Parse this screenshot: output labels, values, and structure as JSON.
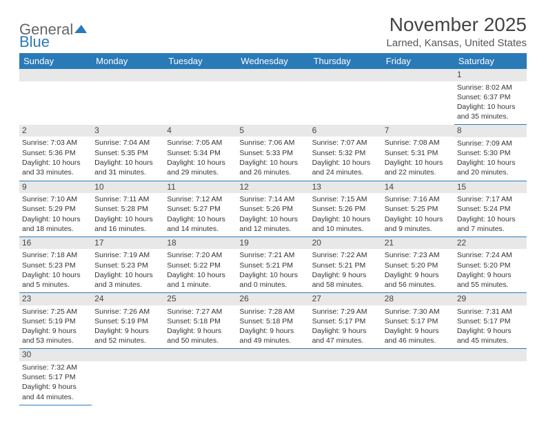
{
  "logo": {
    "general": "General",
    "blue": "Blue"
  },
  "title": "November 2025",
  "location": "Larned, Kansas, United States",
  "colors": {
    "header_bg": "#2a7ab8",
    "header_text": "#ffffff",
    "daynum_bg": "#e8e8e8",
    "border": "#2a7ab8",
    "text": "#333333"
  },
  "weekdays": [
    "Sunday",
    "Monday",
    "Tuesday",
    "Wednesday",
    "Thursday",
    "Friday",
    "Saturday"
  ],
  "weeks": [
    [
      null,
      null,
      null,
      null,
      null,
      null,
      {
        "n": "1",
        "sr": "8:02 AM",
        "ss": "6:37 PM",
        "dl": "10 hours and 35 minutes."
      }
    ],
    [
      {
        "n": "2",
        "sr": "7:03 AM",
        "ss": "5:36 PM",
        "dl": "10 hours and 33 minutes."
      },
      {
        "n": "3",
        "sr": "7:04 AM",
        "ss": "5:35 PM",
        "dl": "10 hours and 31 minutes."
      },
      {
        "n": "4",
        "sr": "7:05 AM",
        "ss": "5:34 PM",
        "dl": "10 hours and 29 minutes."
      },
      {
        "n": "5",
        "sr": "7:06 AM",
        "ss": "5:33 PM",
        "dl": "10 hours and 26 minutes."
      },
      {
        "n": "6",
        "sr": "7:07 AM",
        "ss": "5:32 PM",
        "dl": "10 hours and 24 minutes."
      },
      {
        "n": "7",
        "sr": "7:08 AM",
        "ss": "5:31 PM",
        "dl": "10 hours and 22 minutes."
      },
      {
        "n": "8",
        "sr": "7:09 AM",
        "ss": "5:30 PM",
        "dl": "10 hours and 20 minutes."
      }
    ],
    [
      {
        "n": "9",
        "sr": "7:10 AM",
        "ss": "5:29 PM",
        "dl": "10 hours and 18 minutes."
      },
      {
        "n": "10",
        "sr": "7:11 AM",
        "ss": "5:28 PM",
        "dl": "10 hours and 16 minutes."
      },
      {
        "n": "11",
        "sr": "7:12 AM",
        "ss": "5:27 PM",
        "dl": "10 hours and 14 minutes."
      },
      {
        "n": "12",
        "sr": "7:14 AM",
        "ss": "5:26 PM",
        "dl": "10 hours and 12 minutes."
      },
      {
        "n": "13",
        "sr": "7:15 AM",
        "ss": "5:26 PM",
        "dl": "10 hours and 10 minutes."
      },
      {
        "n": "14",
        "sr": "7:16 AM",
        "ss": "5:25 PM",
        "dl": "10 hours and 9 minutes."
      },
      {
        "n": "15",
        "sr": "7:17 AM",
        "ss": "5:24 PM",
        "dl": "10 hours and 7 minutes."
      }
    ],
    [
      {
        "n": "16",
        "sr": "7:18 AM",
        "ss": "5:23 PM",
        "dl": "10 hours and 5 minutes."
      },
      {
        "n": "17",
        "sr": "7:19 AM",
        "ss": "5:23 PM",
        "dl": "10 hours and 3 minutes."
      },
      {
        "n": "18",
        "sr": "7:20 AM",
        "ss": "5:22 PM",
        "dl": "10 hours and 1 minute."
      },
      {
        "n": "19",
        "sr": "7:21 AM",
        "ss": "5:21 PM",
        "dl": "10 hours and 0 minutes."
      },
      {
        "n": "20",
        "sr": "7:22 AM",
        "ss": "5:21 PM",
        "dl": "9 hours and 58 minutes."
      },
      {
        "n": "21",
        "sr": "7:23 AM",
        "ss": "5:20 PM",
        "dl": "9 hours and 56 minutes."
      },
      {
        "n": "22",
        "sr": "7:24 AM",
        "ss": "5:20 PM",
        "dl": "9 hours and 55 minutes."
      }
    ],
    [
      {
        "n": "23",
        "sr": "7:25 AM",
        "ss": "5:19 PM",
        "dl": "9 hours and 53 minutes."
      },
      {
        "n": "24",
        "sr": "7:26 AM",
        "ss": "5:19 PM",
        "dl": "9 hours and 52 minutes."
      },
      {
        "n": "25",
        "sr": "7:27 AM",
        "ss": "5:18 PM",
        "dl": "9 hours and 50 minutes."
      },
      {
        "n": "26",
        "sr": "7:28 AM",
        "ss": "5:18 PM",
        "dl": "9 hours and 49 minutes."
      },
      {
        "n": "27",
        "sr": "7:29 AM",
        "ss": "5:17 PM",
        "dl": "9 hours and 47 minutes."
      },
      {
        "n": "28",
        "sr": "7:30 AM",
        "ss": "5:17 PM",
        "dl": "9 hours and 46 minutes."
      },
      {
        "n": "29",
        "sr": "7:31 AM",
        "ss": "5:17 PM",
        "dl": "9 hours and 45 minutes."
      }
    ],
    [
      {
        "n": "30",
        "sr": "7:32 AM",
        "ss": "5:17 PM",
        "dl": "9 hours and 44 minutes."
      },
      null,
      null,
      null,
      null,
      null,
      null
    ]
  ],
  "labels": {
    "sunrise": "Sunrise: ",
    "sunset": "Sunset: ",
    "daylight": "Daylight: "
  }
}
